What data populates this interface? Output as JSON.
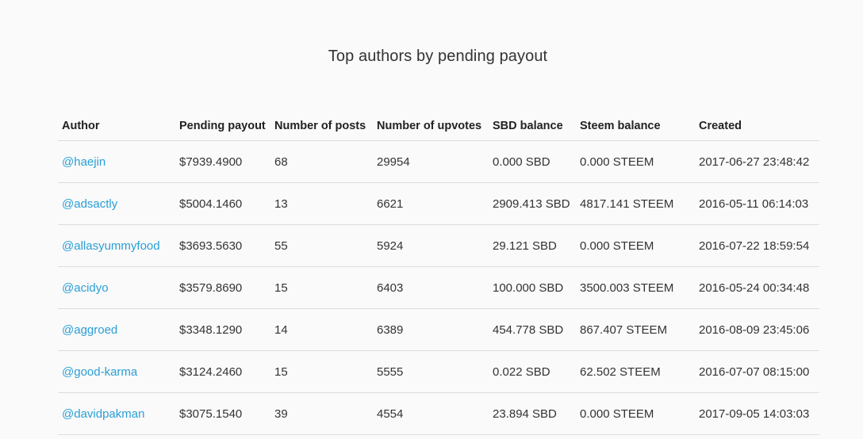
{
  "title": "Top authors by pending payout",
  "colors": {
    "link": "#2a9fd6",
    "text": "#333333",
    "border": "#dddddd",
    "background": "#fafafa"
  },
  "table": {
    "headers": [
      "Author",
      "Pending payout",
      "Number of posts",
      "Number of upvotes",
      "SBD balance",
      "Steem balance",
      "Created"
    ],
    "rows": [
      {
        "author": "@haejin",
        "payout": "$7939.4900",
        "posts": "68",
        "upvotes": "29954",
        "sbd": "0.000 SBD",
        "steem": "0.000 STEEM",
        "created": "2017-06-27 23:48:42"
      },
      {
        "author": "@adsactly",
        "payout": "$5004.1460",
        "posts": "13",
        "upvotes": "6621",
        "sbd": "2909.413 SBD",
        "steem": "4817.141 STEEM",
        "created": "2016-05-11 06:14:03"
      },
      {
        "author": "@allasyummyfood",
        "payout": "$3693.5630",
        "posts": "55",
        "upvotes": "5924",
        "sbd": "29.121 SBD",
        "steem": "0.000 STEEM",
        "created": "2016-07-22 18:59:54"
      },
      {
        "author": "@acidyo",
        "payout": "$3579.8690",
        "posts": "15",
        "upvotes": "6403",
        "sbd": "100.000 SBD",
        "steem": "3500.003 STEEM",
        "created": "2016-05-24 00:34:48"
      },
      {
        "author": "@aggroed",
        "payout": "$3348.1290",
        "posts": "14",
        "upvotes": "6389",
        "sbd": "454.778 SBD",
        "steem": "867.407 STEEM",
        "created": "2016-08-09 23:45:06"
      },
      {
        "author": "@good-karma",
        "payout": "$3124.2460",
        "posts": "15",
        "upvotes": "5555",
        "sbd": "0.022 SBD",
        "steem": "62.502 STEEM",
        "created": "2016-07-07 08:15:00"
      },
      {
        "author": "@davidpakman",
        "payout": "$3075.1540",
        "posts": "39",
        "upvotes": "4554",
        "sbd": "23.894 SBD",
        "steem": "0.000 STEEM",
        "created": "2017-09-05 14:03:03"
      }
    ]
  }
}
